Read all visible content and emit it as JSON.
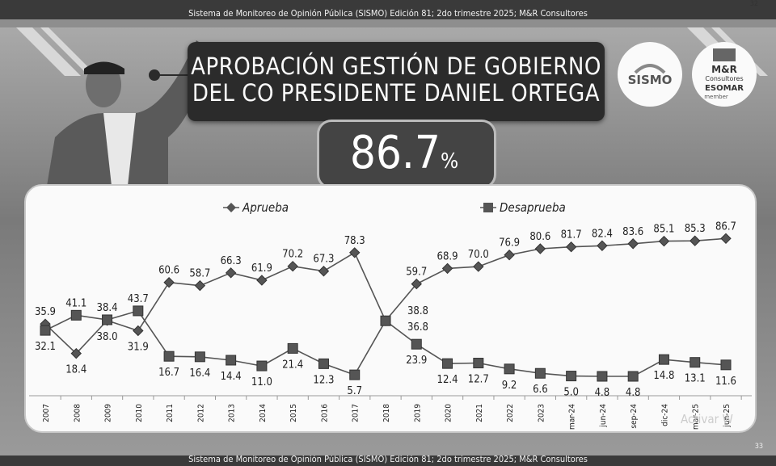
{
  "header": {
    "text": "Sistema de Monitoreo de Opinión Pública (SISMO) Edición 81; 2do trimestre 2025; M&R Consultores",
    "page_top": "32"
  },
  "footer": {
    "text": "Sistema de Monitoreo de Opinión Pública (SISMO) Edición 81; 2do trimestre 2025; M&R Consultores",
    "page_bottom": "33"
  },
  "title_lines": [
    "APROBACIÓN GESTIÓN DE GOBIERNO",
    "DEL CO PRESIDENTE DANIEL ORTEGA"
  ],
  "headline_value": "86.7",
  "headline_unit": "%",
  "logos": {
    "sismo": "SISMO",
    "mr_line1": "M&R",
    "mr_line2": "Consultores",
    "mr_line3": "ESOMAR",
    "mr_line4": "member"
  },
  "watermark": "Activar W",
  "colors": {
    "background": "#8e8e8e",
    "title_box": "#2b2b2b",
    "line": "#555555",
    "marker": "#555555"
  },
  "chart_data": {
    "type": "line",
    "categories": [
      "2007",
      "2008",
      "2009",
      "2010",
      "2011",
      "2012",
      "2013",
      "2014",
      "2015",
      "2016",
      "2017",
      "2018",
      "2019",
      "2020",
      "2021",
      "2022",
      "2023",
      "mar-24",
      "jun-24",
      "sep-24",
      "dic-24",
      "mar-25",
      "jun-25"
    ],
    "series": [
      {
        "name": "Aprueba",
        "marker": "diamond",
        "values": [
          35.9,
          18.4,
          38.0,
          31.9,
          60.6,
          58.7,
          66.3,
          61.9,
          70.2,
          67.3,
          78.3,
          null,
          59.7,
          68.9,
          70.0,
          76.9,
          80.6,
          81.7,
          82.4,
          83.6,
          85.1,
          85.3,
          86.7
        ]
      },
      {
        "name": "Desaprueba",
        "marker": "square",
        "values": [
          32.1,
          41.1,
          38.4,
          43.7,
          16.7,
          16.4,
          14.4,
          11.0,
          21.4,
          12.3,
          5.7,
          null,
          23.9,
          12.4,
          12.7,
          9.2,
          6.6,
          5.0,
          4.8,
          4.8,
          14.8,
          13.1,
          11.6
        ]
      }
    ],
    "connect_2018": {
      "label_top": "38.8",
      "label_bottom": "36.8",
      "value": 37.8
    },
    "ylim": [
      0,
      95
    ],
    "legend": "top"
  }
}
